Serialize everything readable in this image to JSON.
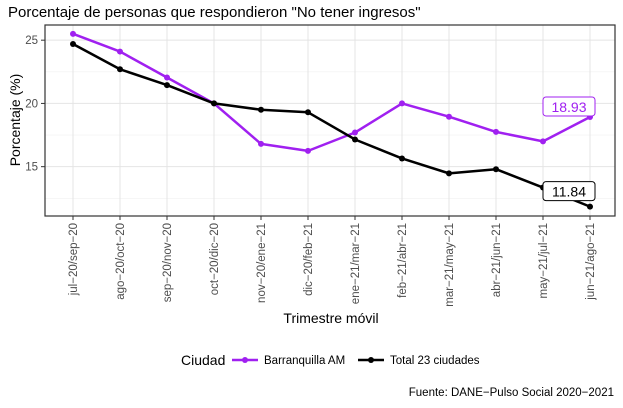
{
  "chart_data": {
    "type": "line",
    "title": "Porcentaje de personas que respondieron \"No tener ingresos\"",
    "xlabel": "Trimestre móvil",
    "ylabel": "Porcentaje (%)",
    "caption": "Fuente: DANE−Pulso Social 2020−2021",
    "categories": [
      "jul−20/sep−20",
      "ago−20/oct−20",
      "sep−20/nov−20",
      "oct−20/dic−20",
      "nov−20/ene−21",
      "dic−20/feb−21",
      "ene−21/mar−21",
      "feb−21/abr−21",
      "mar−21/may−21",
      "abr−21/jun−21",
      "may−21/jul−21",
      "jun−21/ago−21"
    ],
    "yticks": [
      15,
      20,
      25
    ],
    "ylim": [
      11.1,
      26.2
    ],
    "grid": true,
    "legend": {
      "title": "Ciudad",
      "placement": "bottom"
    },
    "series": [
      {
        "name": "Barranquilla AM",
        "color": "#a020f0",
        "values": [
          25.5,
          24.1,
          22.05,
          20.0,
          16.8,
          16.25,
          17.7,
          20.0,
          18.95,
          17.75,
          17.0,
          18.93
        ],
        "end_label": "18.93"
      },
      {
        "name": "Total 23 ciudades",
        "color": "#000000",
        "values": [
          24.7,
          22.7,
          21.45,
          20.0,
          19.5,
          19.3,
          17.15,
          15.65,
          14.47,
          14.8,
          13.35,
          11.84
        ],
        "end_label": "11.84"
      }
    ]
  }
}
